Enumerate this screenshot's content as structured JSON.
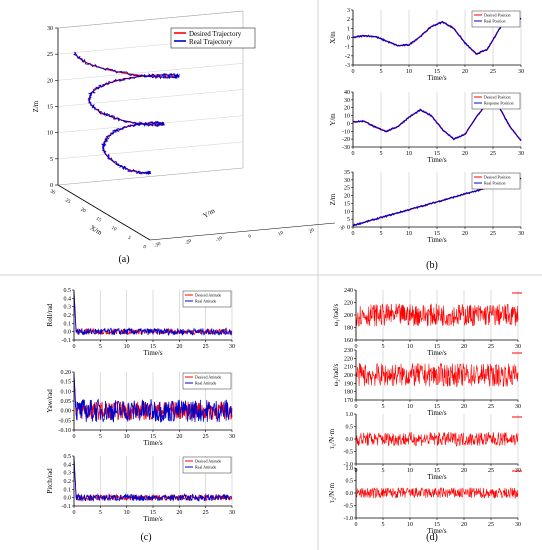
{
  "panel_labels": [
    "(a)",
    "(b)",
    "(c)",
    "(d)"
  ],
  "chart_data": [
    {
      "panel": "(a)",
      "type": "line",
      "subtype": "3d-trajectory",
      "series": [
        {
          "name": "Desired Trajectory",
          "color": "#ff0000"
        },
        {
          "name": "Real Trajectory",
          "color": "#0000cc"
        }
      ],
      "zlabel": "Z/m",
      "xlabel": "X/m",
      "ylabel": "Y/m",
      "zticks": [
        "0",
        "5",
        "10",
        "15",
        "20",
        "25",
        "30"
      ],
      "xticks": [
        "30",
        "25",
        "20",
        "15",
        "10",
        "5",
        "0"
      ],
      "yticks": [
        "-30",
        "-20",
        "-10",
        "0",
        "10",
        "20",
        "30"
      ],
      "zlim": [
        0,
        30
      ],
      "turns": 2.5,
      "legend_position": "top-right"
    },
    {
      "panel": "(b)-1",
      "type": "line",
      "ylabel": "X/m",
      "xlabel": "Time/s",
      "xlim": [
        0,
        30
      ],
      "ylim": [
        -3,
        3
      ],
      "xticks": [
        "0",
        "5",
        "10",
        "15",
        "20",
        "25",
        "30"
      ],
      "yticks": [
        "-3",
        "-2",
        "-1",
        "0",
        "1",
        "2",
        "3"
      ],
      "series": [
        {
          "name": "Desired Position",
          "color": "#ff0000"
        },
        {
          "name": "Real Position",
          "color": "#0000cc"
        }
      ],
      "x": [
        0,
        2,
        4,
        6,
        8,
        10,
        12,
        14,
        16,
        18,
        20,
        22,
        24,
        26,
        28,
        30
      ],
      "values": [
        0.0,
        0.2,
        0.1,
        -0.4,
        -0.9,
        -0.8,
        0.1,
        1.2,
        1.7,
        1.0,
        -0.6,
        -1.8,
        -1.3,
        0.8,
        2.6,
        2.0
      ],
      "legend_position": "top-right"
    },
    {
      "panel": "(b)-2",
      "type": "line",
      "ylabel": "Y/m",
      "xlabel": "Time/s",
      "xlim": [
        0,
        30
      ],
      "ylim": [
        -30,
        40
      ],
      "xticks": [
        "0",
        "5",
        "10",
        "15",
        "20",
        "25",
        "30"
      ],
      "yticks": [
        "-30",
        "-20",
        "-10",
        "0",
        "10",
        "20",
        "30",
        "40"
      ],
      "series": [
        {
          "name": "Desired Position",
          "color": "#ff0000"
        },
        {
          "name": "Response Position",
          "color": "#0000cc"
        }
      ],
      "x": [
        0,
        2,
        4,
        6,
        8,
        10,
        12,
        14,
        16,
        18,
        20,
        22,
        24,
        26,
        28,
        30
      ],
      "values": [
        2,
        3,
        -5,
        -10,
        -4,
        8,
        17,
        10,
        -8,
        -20,
        -14,
        8,
        26,
        22,
        -4,
        -22
      ],
      "legend_position": "top-right"
    },
    {
      "panel": "(b)-3",
      "type": "line",
      "ylabel": "Z/m",
      "xlabel": "Time/s",
      "xlim": [
        0,
        30
      ],
      "ylim": [
        0,
        35
      ],
      "xticks": [
        "0",
        "5",
        "10",
        "15",
        "20",
        "25",
        "30"
      ],
      "yticks": [
        "0",
        "5",
        "10",
        "15",
        "20",
        "25",
        "30",
        "35"
      ],
      "series": [
        {
          "name": "Desired Position",
          "color": "#ff0000"
        },
        {
          "name": "Real Position",
          "color": "#0000cc"
        }
      ],
      "x": [
        0,
        30
      ],
      "values": [
        1,
        31
      ],
      "legend_position": "top-right"
    },
    {
      "panel": "(c)-1",
      "type": "line",
      "ylabel": "Roll/rad",
      "xlabel": "Time/s",
      "xlim": [
        0,
        30
      ],
      "ylim": [
        -0.1,
        0.5
      ],
      "xticks": [
        "0",
        "5",
        "10",
        "15",
        "20",
        "25",
        "30"
      ],
      "yticks": [
        "-0.1",
        "0.0",
        "0.1",
        "0.2",
        "0.3",
        "0.4",
        "0.5"
      ],
      "series": [
        {
          "name": "Desired Attitude",
          "color": "#ff0000"
        },
        {
          "name": "Real Attitude",
          "color": "#0000cc"
        }
      ],
      "noise_amplitude": 0.04,
      "initial_spike": 0.48,
      "legend_position": "top-right"
    },
    {
      "panel": "(c)-2",
      "type": "line",
      "ylabel": "Yaw/rad",
      "xlabel": "Time/s",
      "xlim": [
        0,
        30
      ],
      "ylim": [
        -0.1,
        0.2
      ],
      "xticks": [
        "0",
        "5",
        "10",
        "15",
        "20",
        "25",
        "30"
      ],
      "yticks": [
        "-0.10",
        "-0.05",
        "0.00",
        "0.05",
        "0.10",
        "0.15",
        "0.20"
      ],
      "series": [
        {
          "name": "Desired Attitude",
          "color": "#ff0000"
        },
        {
          "name": "Real Attitude",
          "color": "#0000cc"
        }
      ],
      "noise_amplitude": 0.06,
      "initial_spike": 0.19,
      "legend_position": "top-right"
    },
    {
      "panel": "(c)-3",
      "type": "line",
      "ylabel": "Pitch/rad",
      "xlabel": "Time/s",
      "xlim": [
        0,
        30
      ],
      "ylim": [
        -0.1,
        0.5
      ],
      "xticks": [
        "0",
        "5",
        "10",
        "15",
        "20",
        "25",
        "30"
      ],
      "yticks": [
        "-0.1",
        "0.0",
        "0.1",
        "0.2",
        "0.3",
        "0.4",
        "0.5"
      ],
      "series": [
        {
          "name": "Desired Attitude",
          "color": "#ff0000"
        },
        {
          "name": "Real Attitude",
          "color": "#0000cc"
        }
      ],
      "noise_amplitude": 0.04,
      "initial_spike": 0.48,
      "legend_position": "top-right"
    },
    {
      "panel": "(d)-1",
      "type": "line",
      "ylabel": "ω₁/rad/s",
      "xlabel": "Time/s",
      "xlim": [
        0,
        30
      ],
      "ylim": [
        160,
        240
      ],
      "xticks": [
        "0",
        "5",
        "10",
        "15",
        "20",
        "25",
        "30"
      ],
      "yticks": [
        "160",
        "180",
        "200",
        "220",
        "240"
      ],
      "series": [
        {
          "name": "",
          "color": "#ff0000"
        }
      ],
      "center": 200,
      "noise_amplitude": 18,
      "legend_position": "top-right"
    },
    {
      "panel": "(d)-2",
      "type": "line",
      "ylabel": "ω₂/rad/s",
      "xlabel": "Time/s",
      "xlim": [
        0,
        30
      ],
      "ylim": [
        170,
        230
      ],
      "xticks": [
        "0",
        "5",
        "10",
        "15",
        "20",
        "25",
        "30"
      ],
      "yticks": [
        "170",
        "180",
        "190",
        "200",
        "210",
        "220",
        "230"
      ],
      "series": [
        {
          "name": "",
          "color": "#ff0000"
        }
      ],
      "center": 200,
      "noise_amplitude": 14,
      "legend_position": "top-right"
    },
    {
      "panel": "(d)-3",
      "type": "line",
      "ylabel": "τ₁/N·m",
      "xlabel": "Time/s",
      "xlim": [
        0,
        30
      ],
      "ylim": [
        -1.0,
        1.0
      ],
      "xticks": [
        "0",
        "5",
        "10",
        "15",
        "20",
        "25",
        "30"
      ],
      "yticks": [
        "-1.0",
        "-0.5",
        "0.0",
        "0.5",
        "1.0"
      ],
      "series": [
        {
          "name": "",
          "color": "#ff0000"
        }
      ],
      "center": 0,
      "noise_amplitude": 0.28,
      "legend_position": "top-right"
    },
    {
      "panel": "(d)-4",
      "type": "line",
      "ylabel": "τ₂/N·m",
      "xlabel": "Time/s",
      "xlim": [
        0,
        30
      ],
      "ylim": [
        -1.0,
        1.0
      ],
      "xticks": [
        "0",
        "5",
        "10",
        "15",
        "20",
        "25",
        "30"
      ],
      "yticks": [
        "-1.0",
        "-0.5",
        "0.0",
        "0.5",
        "1.0"
      ],
      "series": [
        {
          "name": "",
          "color": "#ff0000"
        }
      ],
      "center": 0,
      "noise_amplitude": 0.22,
      "legend_position": "top-right"
    }
  ]
}
